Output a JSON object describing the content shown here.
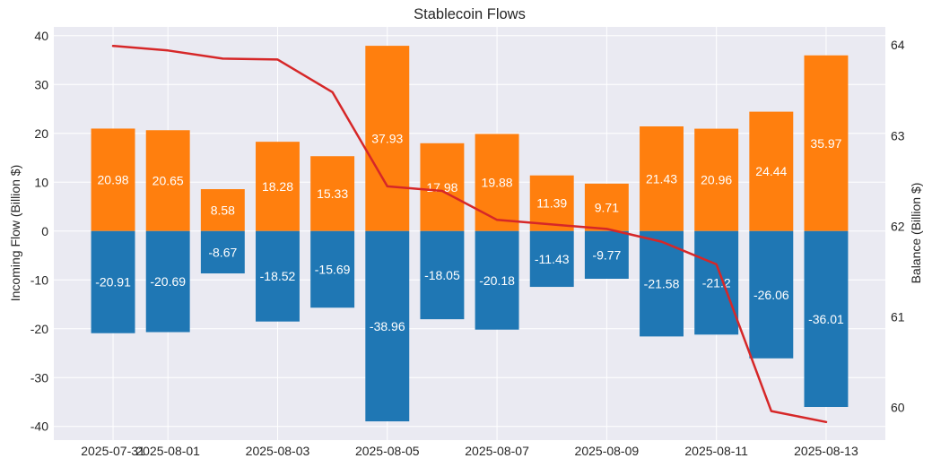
{
  "chart_data": {
    "type": "bar",
    "title": "Stablecoin Flows",
    "ylabel": "Incoming Flow (Billion $)",
    "y2label": "Balance (Billion $)",
    "x": [
      "2025-07-31",
      "2025-08-01",
      "2025-08-02",
      "2025-08-03",
      "2025-08-04",
      "2025-08-05",
      "2025-08-06",
      "2025-08-07",
      "2025-08-08",
      "2025-08-09",
      "2025-08-10",
      "2025-08-11",
      "2025-08-12",
      "2025-08-13"
    ],
    "xticks": [
      "2025-07-31",
      "2025-08-01",
      "2025-08-03",
      "2025-08-05",
      "2025-08-07",
      "2025-08-09",
      "2025-08-11",
      "2025-08-13"
    ],
    "ylim": [
      -42.8,
      41.8
    ],
    "yticks": [
      -40,
      -30,
      -20,
      -10,
      0,
      10,
      20,
      30,
      40
    ],
    "y2lim": [
      59.64,
      64.2
    ],
    "y2ticks": [
      60,
      61,
      62,
      63,
      64
    ],
    "grid": true,
    "series": [
      {
        "type": "bar",
        "color": "#ff7f0e",
        "values": [
          20.98,
          20.65,
          8.58,
          18.28,
          15.33,
          37.93,
          17.98,
          19.88,
          11.39,
          9.71,
          21.43,
          20.96,
          24.44,
          35.97
        ]
      },
      {
        "type": "bar",
        "color": "#1f77b4",
        "values": [
          -20.91,
          -20.69,
          -8.67,
          -18.52,
          -15.69,
          -38.96,
          -18.05,
          -20.18,
          -11.43,
          -9.77,
          -21.58,
          -21.2,
          -26.06,
          -36.01
        ]
      },
      {
        "type": "line",
        "axis": "right",
        "color": "#d62728",
        "values": [
          63.99,
          63.94,
          63.85,
          63.84,
          63.48,
          62.44,
          62.39,
          62.07,
          62.02,
          61.97,
          61.83,
          61.58,
          59.96,
          59.84
        ]
      }
    ]
  }
}
